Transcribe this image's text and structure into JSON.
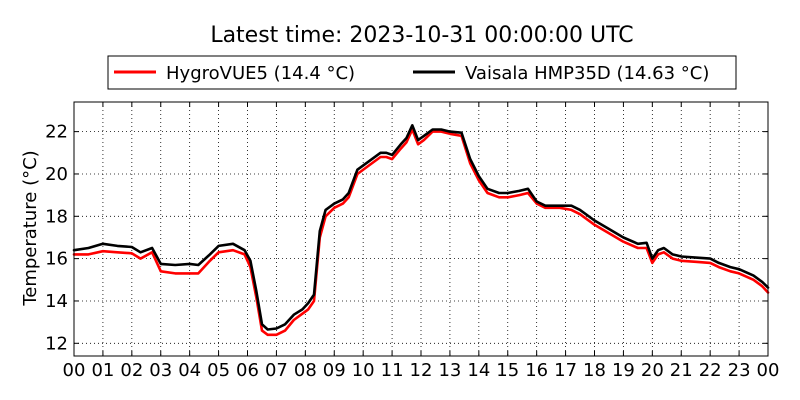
{
  "chart_data": {
    "type": "line",
    "title": "Latest time: 2023-10-31 00:00:00 UTC",
    "ylabel": "Temperature (°C)",
    "xlabel": "",
    "xlim": [
      0,
      24
    ],
    "ylim": [
      11.4,
      23.4
    ],
    "xticks": [
      "00",
      "01",
      "02",
      "03",
      "04",
      "05",
      "06",
      "07",
      "08",
      "09",
      "10",
      "11",
      "12",
      "13",
      "14",
      "15",
      "16",
      "17",
      "18",
      "19",
      "20",
      "21",
      "22",
      "23",
      "00"
    ],
    "yticks": [
      12,
      14,
      16,
      18,
      20,
      22
    ],
    "grid": true,
    "legend_position": "top",
    "series": [
      {
        "name": "HygroVUE5 (14.4 °C)",
        "color": "#ff0000",
        "x": [
          0,
          0.5,
          1,
          1.5,
          2,
          2.3,
          2.7,
          3.0,
          3.5,
          4.0,
          4.3,
          4.7,
          5.0,
          5.5,
          5.9,
          6.1,
          6.3,
          6.5,
          6.7,
          7.0,
          7.3,
          7.6,
          7.9,
          8.1,
          8.3,
          8.4,
          8.5,
          8.7,
          9.0,
          9.3,
          9.5,
          9.8,
          10.2,
          10.6,
          10.8,
          11.0,
          11.3,
          11.5,
          11.7,
          11.9,
          12.1,
          12.4,
          12.7,
          13.0,
          13.4,
          13.7,
          14.0,
          14.3,
          14.7,
          15.0,
          15.4,
          15.7,
          16.0,
          16.3,
          16.8,
          17.2,
          17.5,
          18.0,
          18.5,
          19.0,
          19.5,
          19.8,
          20.0,
          20.2,
          20.4,
          20.7,
          21.0,
          21.5,
          22.0,
          22.3,
          22.7,
          23.0,
          23.5,
          23.8,
          24.0
        ],
        "y": [
          16.2,
          16.2,
          16.35,
          16.3,
          16.25,
          16.0,
          16.3,
          15.4,
          15.3,
          15.3,
          15.3,
          15.9,
          16.3,
          16.4,
          16.2,
          15.6,
          14.2,
          12.6,
          12.4,
          12.4,
          12.6,
          13.1,
          13.4,
          13.6,
          14.0,
          15.5,
          17.0,
          18.0,
          18.4,
          18.6,
          18.9,
          20.0,
          20.4,
          20.8,
          20.8,
          20.7,
          21.2,
          21.5,
          22.1,
          21.4,
          21.6,
          22.0,
          22.0,
          21.9,
          21.8,
          20.5,
          19.7,
          19.1,
          18.9,
          18.9,
          19.0,
          19.1,
          18.6,
          18.4,
          18.4,
          18.3,
          18.1,
          17.6,
          17.2,
          16.8,
          16.5,
          16.5,
          15.8,
          16.2,
          16.3,
          16.0,
          15.9,
          15.85,
          15.8,
          15.6,
          15.4,
          15.3,
          15.0,
          14.7,
          14.4
        ]
      },
      {
        "name": "Vaisala HMP35D (14.63 °C)",
        "color": "#000000",
        "x": [
          0,
          0.5,
          1,
          1.5,
          2,
          2.3,
          2.7,
          3.0,
          3.5,
          4.0,
          4.3,
          4.7,
          5.0,
          5.5,
          5.9,
          6.1,
          6.3,
          6.5,
          6.7,
          7.0,
          7.3,
          7.6,
          7.9,
          8.1,
          8.3,
          8.4,
          8.5,
          8.7,
          9.0,
          9.3,
          9.5,
          9.8,
          10.2,
          10.6,
          10.8,
          11.0,
          11.3,
          11.5,
          11.7,
          11.9,
          12.1,
          12.4,
          12.7,
          13.0,
          13.4,
          13.7,
          14.0,
          14.3,
          14.7,
          15.0,
          15.4,
          15.7,
          16.0,
          16.3,
          16.8,
          17.2,
          17.5,
          18.0,
          18.5,
          19.0,
          19.5,
          19.8,
          20.0,
          20.2,
          20.4,
          20.7,
          21.0,
          21.5,
          22.0,
          22.3,
          22.7,
          23.0,
          23.5,
          23.8,
          24.0
        ],
        "y": [
          16.4,
          16.5,
          16.7,
          16.6,
          16.55,
          16.3,
          16.5,
          15.75,
          15.7,
          15.75,
          15.7,
          16.2,
          16.6,
          16.7,
          16.4,
          15.9,
          14.5,
          12.9,
          12.65,
          12.7,
          12.9,
          13.35,
          13.6,
          13.9,
          14.3,
          15.8,
          17.3,
          18.3,
          18.6,
          18.8,
          19.1,
          20.2,
          20.6,
          21.0,
          21.0,
          20.9,
          21.4,
          21.7,
          22.3,
          21.6,
          21.8,
          22.1,
          22.1,
          22.0,
          21.95,
          20.7,
          19.9,
          19.3,
          19.1,
          19.1,
          19.2,
          19.3,
          18.7,
          18.5,
          18.5,
          18.5,
          18.3,
          17.8,
          17.4,
          17.0,
          16.7,
          16.75,
          16.0,
          16.4,
          16.5,
          16.2,
          16.1,
          16.05,
          16.0,
          15.8,
          15.6,
          15.5,
          15.2,
          14.9,
          14.63
        ]
      }
    ]
  }
}
